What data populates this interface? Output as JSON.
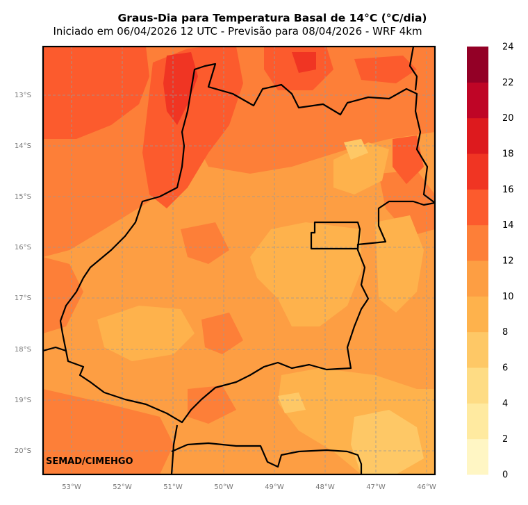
{
  "title": "Graus-Dia para Temperatura Basal de 14°C (°C/dia)",
  "subtitle": "Iniciado em 06/04/2026 12 UTC - Previsão para 08/04/2026 - WRF 4km",
  "credit": "SEMAD/CIMEHGO",
  "lat_labels": [
    "13°S",
    "14°S",
    "15°S",
    "16°S",
    "17°S",
    "18°S",
    "19°S",
    "20°S"
  ],
  "lon_labels": [
    "53°W",
    "52°W",
    "51°W",
    "50°W",
    "49°W",
    "48°W",
    "47°W",
    "46°W"
  ],
  "colorbar": {
    "ticks": [
      "0",
      "2",
      "4",
      "6",
      "8",
      "10",
      "12",
      "14",
      "16",
      "18",
      "20",
      "22",
      "24"
    ],
    "colors": [
      "#fff6c4",
      "#ffeaa0",
      "#fedc84",
      "#fec866",
      "#feb24c",
      "#fd9e43",
      "#fd7f38",
      "#fc5b2d",
      "#f03523",
      "#dd1a1e",
      "#bf0526",
      "#930026"
    ]
  }
}
